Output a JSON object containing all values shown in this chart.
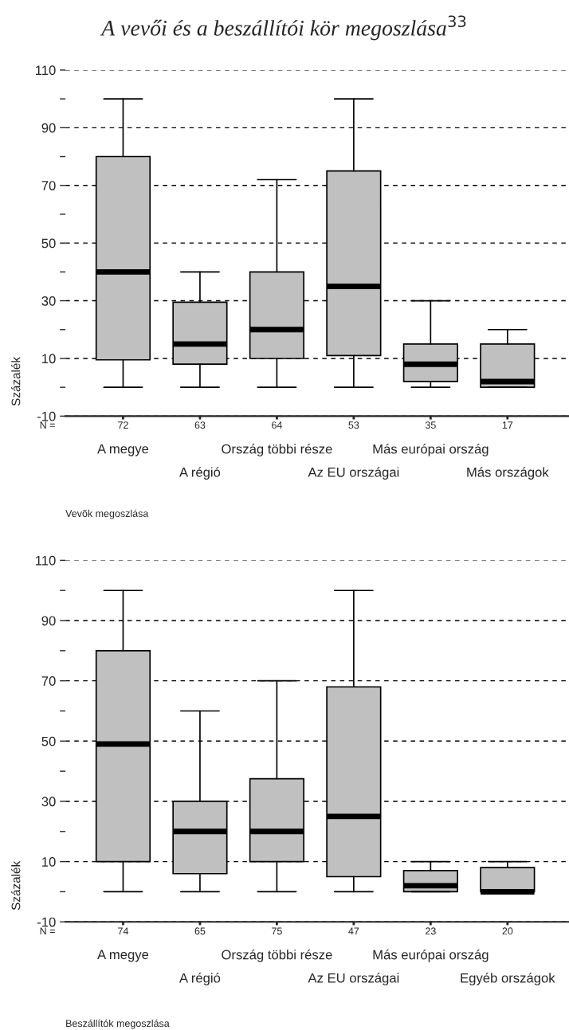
{
  "chart_data": [
    {
      "type": "box",
      "title": "A vevői és a beszállítói kör megoszlása$^{33}$",
      "ylabel": "Százalék",
      "categories": [
        "A megye",
        "A régió",
        "Ország többi része",
        "Az EU országai",
        "Más európai ország",
        "Más országok"
      ],
      "boxes": [
        {
          "low": 0,
          "q1": 9.5,
          "median": 40,
          "q3": 80,
          "high": 100
        },
        {
          "low": 0,
          "q1": 8,
          "median": 15,
          "q3": 29.5,
          "high": 40
        },
        {
          "low": 0,
          "q1": 10,
          "median": 20,
          "q3": 40,
          "high": 72
        },
        {
          "low": 0,
          "q1": 11,
          "median": 35,
          "q3": 75,
          "high": 100
        },
        {
          "low": 0,
          "q1": 2,
          "median": 8,
          "q3": 15,
          "high": 30
        },
        {
          "low": 0,
          "q1": 0,
          "median": 2,
          "q3": 15,
          "high": 20
        }
      ],
      "color": "#c0c0c0",
      "ylim": [
        -10,
        110
      ],
      "yticks": [
        -10,
        {
          "value": 0,
          "label": null
        },
        10,
        {
          "value": 20,
          "label": null
        },
        30,
        {
          "value": 40,
          "label": null
        },
        50,
        {
          "value": 60,
          "label": null
        },
        70,
        {
          "value": 80,
          "label": null
        },
        90,
        {
          "value": 100,
          "label": null
        },
        110
      ],
      "grid": "y",
      "annotations": [
        "N =",
        "72",
        "63",
        "64",
        "53",
        "35",
        "17",
        "Vevõk megoszlása"
      ]
    },
    {
      "type": "box",
      "ylabel": "Százalék",
      "categories": [
        "A megye",
        "A régió",
        "Ország többi része",
        "Az EU országai",
        "Más európai ország",
        "Egyéb országok"
      ],
      "boxes": [
        {
          "low": 0,
          "q1": 10,
          "median": 49,
          "q3": 80,
          "high": 100
        },
        {
          "low": 0,
          "q1": 6,
          "median": 20,
          "q3": 30,
          "high": 60
        },
        {
          "low": 0,
          "q1": 10,
          "median": 20,
          "q3": 37.5,
          "high": 70
        },
        {
          "low": 0,
          "q1": 5,
          "median": 25,
          "q3": 68,
          "high": 100
        },
        {
          "low": 0,
          "q1": 0,
          "median": 2,
          "q3": 7,
          "high": 10
        },
        {
          "low": 0,
          "q1": 0,
          "median": 0,
          "q3": 8,
          "high": 10
        }
      ],
      "color": "#c0c0c0",
      "ylim": [
        -10,
        110
      ],
      "yticks": [
        -10,
        {
          "value": 0,
          "label": null
        },
        10,
        {
          "value": 20,
          "label": null
        },
        30,
        {
          "value": 40,
          "label": null
        },
        50,
        {
          "value": 60,
          "label": null
        },
        70,
        {
          "value": 80,
          "label": null
        },
        90,
        {
          "value": 100,
          "label": null
        },
        110
      ],
      "grid": "y",
      "annotations": [
        "N =",
        "74",
        "65",
        "75",
        "47",
        "23",
        "20",
        "Beszállítók megoszlása"
      ]
    }
  ]
}
